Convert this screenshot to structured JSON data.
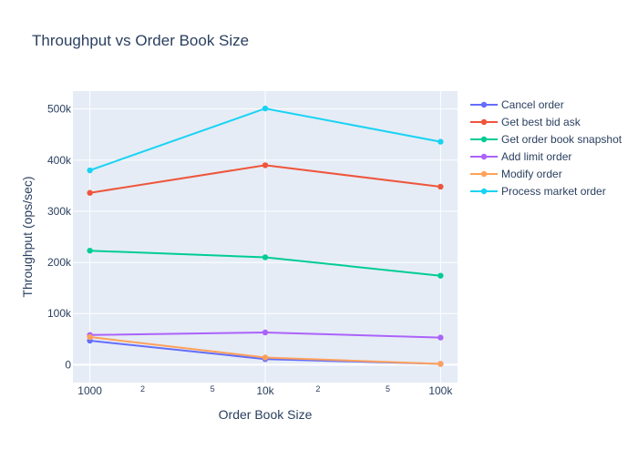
{
  "chart_data": {
    "type": "line",
    "title": "Throughput vs Order Book Size",
    "xlabel": "Order Book Size",
    "ylabel": "Throughput (ops/sec)",
    "x_scale": "log",
    "x": [
      1000,
      10000,
      100000
    ],
    "x_ticks": [
      {
        "value": 1000,
        "label": "1000",
        "major": true
      },
      {
        "value": 2000,
        "label": "2",
        "major": false
      },
      {
        "value": 5000,
        "label": "5",
        "major": false
      },
      {
        "value": 10000,
        "label": "10k",
        "major": true
      },
      {
        "value": 20000,
        "label": "2",
        "major": false
      },
      {
        "value": 50000,
        "label": "5",
        "major": false
      },
      {
        "value": 100000,
        "label": "100k",
        "major": true
      }
    ],
    "y_ticks": [
      {
        "value": 0,
        "label": "0"
      },
      {
        "value": 100000,
        "label": "100k"
      },
      {
        "value": 200000,
        "label": "200k"
      },
      {
        "value": 300000,
        "label": "300k"
      },
      {
        "value": 400000,
        "label": "400k"
      },
      {
        "value": 500000,
        "label": "500k"
      }
    ],
    "xlim": [
      800,
      125000
    ],
    "ylim": [
      -35000,
      535000
    ],
    "grid": true,
    "legend_position": "right",
    "series": [
      {
        "name": "Cancel order",
        "color": "#636efa",
        "values": [
          47000,
          11000,
          1500
        ]
      },
      {
        "name": "Get best bid ask",
        "color": "#EF553B",
        "values": [
          336000,
          390000,
          348000
        ]
      },
      {
        "name": "Get order book snapshot",
        "color": "#00cc96",
        "values": [
          223000,
          210000,
          174000
        ]
      },
      {
        "name": "Add limit order",
        "color": "#ab63fa",
        "values": [
          58000,
          63000,
          53000
        ]
      },
      {
        "name": "Modify order",
        "color": "#FFA15A",
        "values": [
          54000,
          14000,
          1500
        ]
      },
      {
        "name": "Process market order",
        "color": "#19d3f3",
        "values": [
          380000,
          501000,
          436000
        ]
      }
    ]
  }
}
